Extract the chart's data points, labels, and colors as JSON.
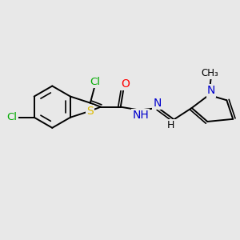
{
  "background_color": "#e8e8e8",
  "bond_color": "#000000",
  "atoms": {
    "S": {
      "color": "#ddbb00",
      "fontsize": 10
    },
    "N": {
      "color": "#0000cc",
      "fontsize": 10
    },
    "O": {
      "color": "#ff0000",
      "fontsize": 10
    },
    "Cl": {
      "color": "#00aa00",
      "fontsize": 9.5
    },
    "H": {
      "color": "#000000",
      "fontsize": 9
    }
  },
  "figsize": [
    3.0,
    3.0
  ],
  "dpi": 100,
  "xlim": [
    0,
    10
  ],
  "ylim": [
    0,
    10
  ]
}
